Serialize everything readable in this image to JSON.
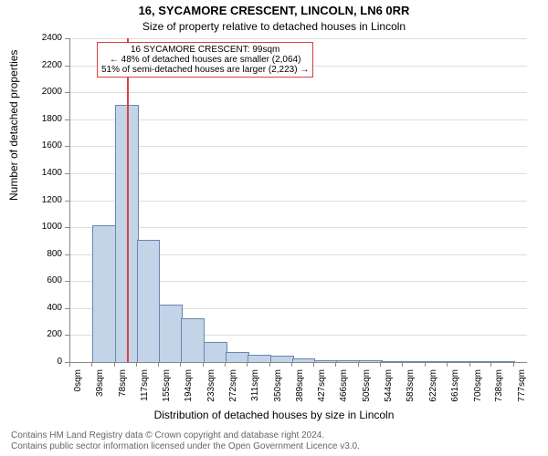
{
  "header": {
    "title_main": "16, SYCAMORE CRESCENT, LINCOLN, LN6 0RR",
    "title_sub": "Size of property relative to detached houses in Lincoln"
  },
  "chart": {
    "type": "histogram",
    "background_color": "#ffffff",
    "grid_color": "#dddddd",
    "axis_color": "#888888",
    "xlim": [
      0,
      800
    ],
    "ylim": [
      0,
      2400
    ],
    "ylabel": "Number of detached properties",
    "xlabel": "Distribution of detached houses by size in Lincoln",
    "ytick_step": 200,
    "xtick_positions": [
      0,
      39,
      78,
      117,
      155,
      194,
      233,
      272,
      311,
      350,
      389,
      427,
      466,
      505,
      544,
      583,
      622,
      661,
      700,
      738,
      777
    ],
    "xtick_labels": [
      "0sqm",
      "39sqm",
      "78sqm",
      "117sqm",
      "155sqm",
      "194sqm",
      "233sqm",
      "272sqm",
      "311sqm",
      "350sqm",
      "389sqm",
      "427sqm",
      "466sqm",
      "505sqm",
      "544sqm",
      "583sqm",
      "622sqm",
      "661sqm",
      "700sqm",
      "738sqm",
      "777sqm"
    ],
    "bars": [
      {
        "x0": 0,
        "x1": 39,
        "y": 0
      },
      {
        "x0": 39,
        "x1": 78,
        "y": 1010
      },
      {
        "x0": 78,
        "x1": 117,
        "y": 1900
      },
      {
        "x0": 117,
        "x1": 155,
        "y": 900
      },
      {
        "x0": 155,
        "x1": 194,
        "y": 420
      },
      {
        "x0": 194,
        "x1": 233,
        "y": 320
      },
      {
        "x0": 233,
        "x1": 272,
        "y": 140
      },
      {
        "x0": 272,
        "x1": 311,
        "y": 70
      },
      {
        "x0": 311,
        "x1": 350,
        "y": 50
      },
      {
        "x0": 350,
        "x1": 389,
        "y": 40
      },
      {
        "x0": 389,
        "x1": 427,
        "y": 20
      },
      {
        "x0": 427,
        "x1": 466,
        "y": 8
      },
      {
        "x0": 466,
        "x1": 505,
        "y": 6
      },
      {
        "x0": 505,
        "x1": 544,
        "y": 4
      },
      {
        "x0": 544,
        "x1": 583,
        "y": 2
      },
      {
        "x0": 583,
        "x1": 622,
        "y": 2
      },
      {
        "x0": 622,
        "x1": 661,
        "y": 2
      },
      {
        "x0": 661,
        "x1": 700,
        "y": 2
      },
      {
        "x0": 700,
        "x1": 738,
        "y": 2
      },
      {
        "x0": 738,
        "x1": 777,
        "y": 2
      }
    ],
    "bar_fill": "#c3d4e8",
    "bar_border": "#6a86b0",
    "marker": {
      "x": 99,
      "color": "#d94040"
    },
    "annotation": {
      "lines": [
        "16 SYCAMORE CRESCENT: 99sqm",
        "← 48% of detached houses are smaller (2,064)",
        "51% of semi-detached houses are larger (2,223) →"
      ],
      "border_color": "#d94040",
      "bg_color": "#ffffff"
    }
  },
  "footer": {
    "line1": "Contains HM Land Registry data © Crown copyright and database right 2024.",
    "line2": "Contains public sector information licensed under the Open Government Licence v3.0."
  }
}
